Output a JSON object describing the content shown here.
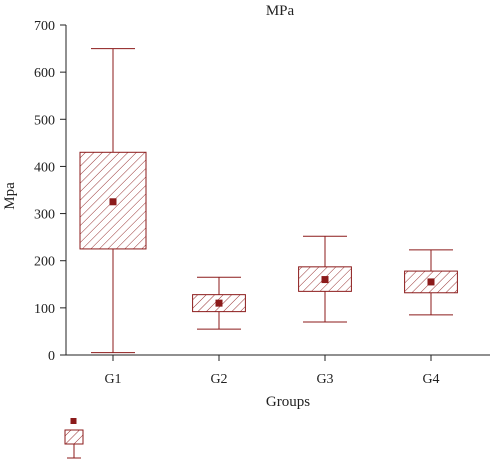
{
  "chart_data": {
    "type": "boxplot",
    "title": "MPa",
    "xlabel": "Groups",
    "ylabel": "Mpa",
    "ylim": [
      0,
      700
    ],
    "yticks": [
      0,
      100,
      200,
      300,
      400,
      500,
      600,
      700
    ],
    "categories": [
      "G1",
      "G2",
      "G3",
      "G4"
    ],
    "boxes": [
      {
        "category": "G1",
        "min": 5,
        "q1": 225,
        "median": 325,
        "q3": 430,
        "max": 650,
        "mean": 325
      },
      {
        "category": "G2",
        "min": 55,
        "q1": 92,
        "median": 110,
        "q3": 128,
        "max": 165,
        "mean": 110
      },
      {
        "category": "G3",
        "min": 70,
        "q1": 135,
        "median": 160,
        "q3": 187,
        "max": 252,
        "mean": 160
      },
      {
        "category": "G4",
        "min": 85,
        "q1": 132,
        "median": 155,
        "q3": 178,
        "max": 223,
        "mean": 155
      }
    ],
    "grid": false,
    "legend": "bottom-left",
    "colors": {
      "box": "#8b1a1a",
      "mean_marker": "#8b1a1a",
      "axis": "#222222"
    }
  }
}
